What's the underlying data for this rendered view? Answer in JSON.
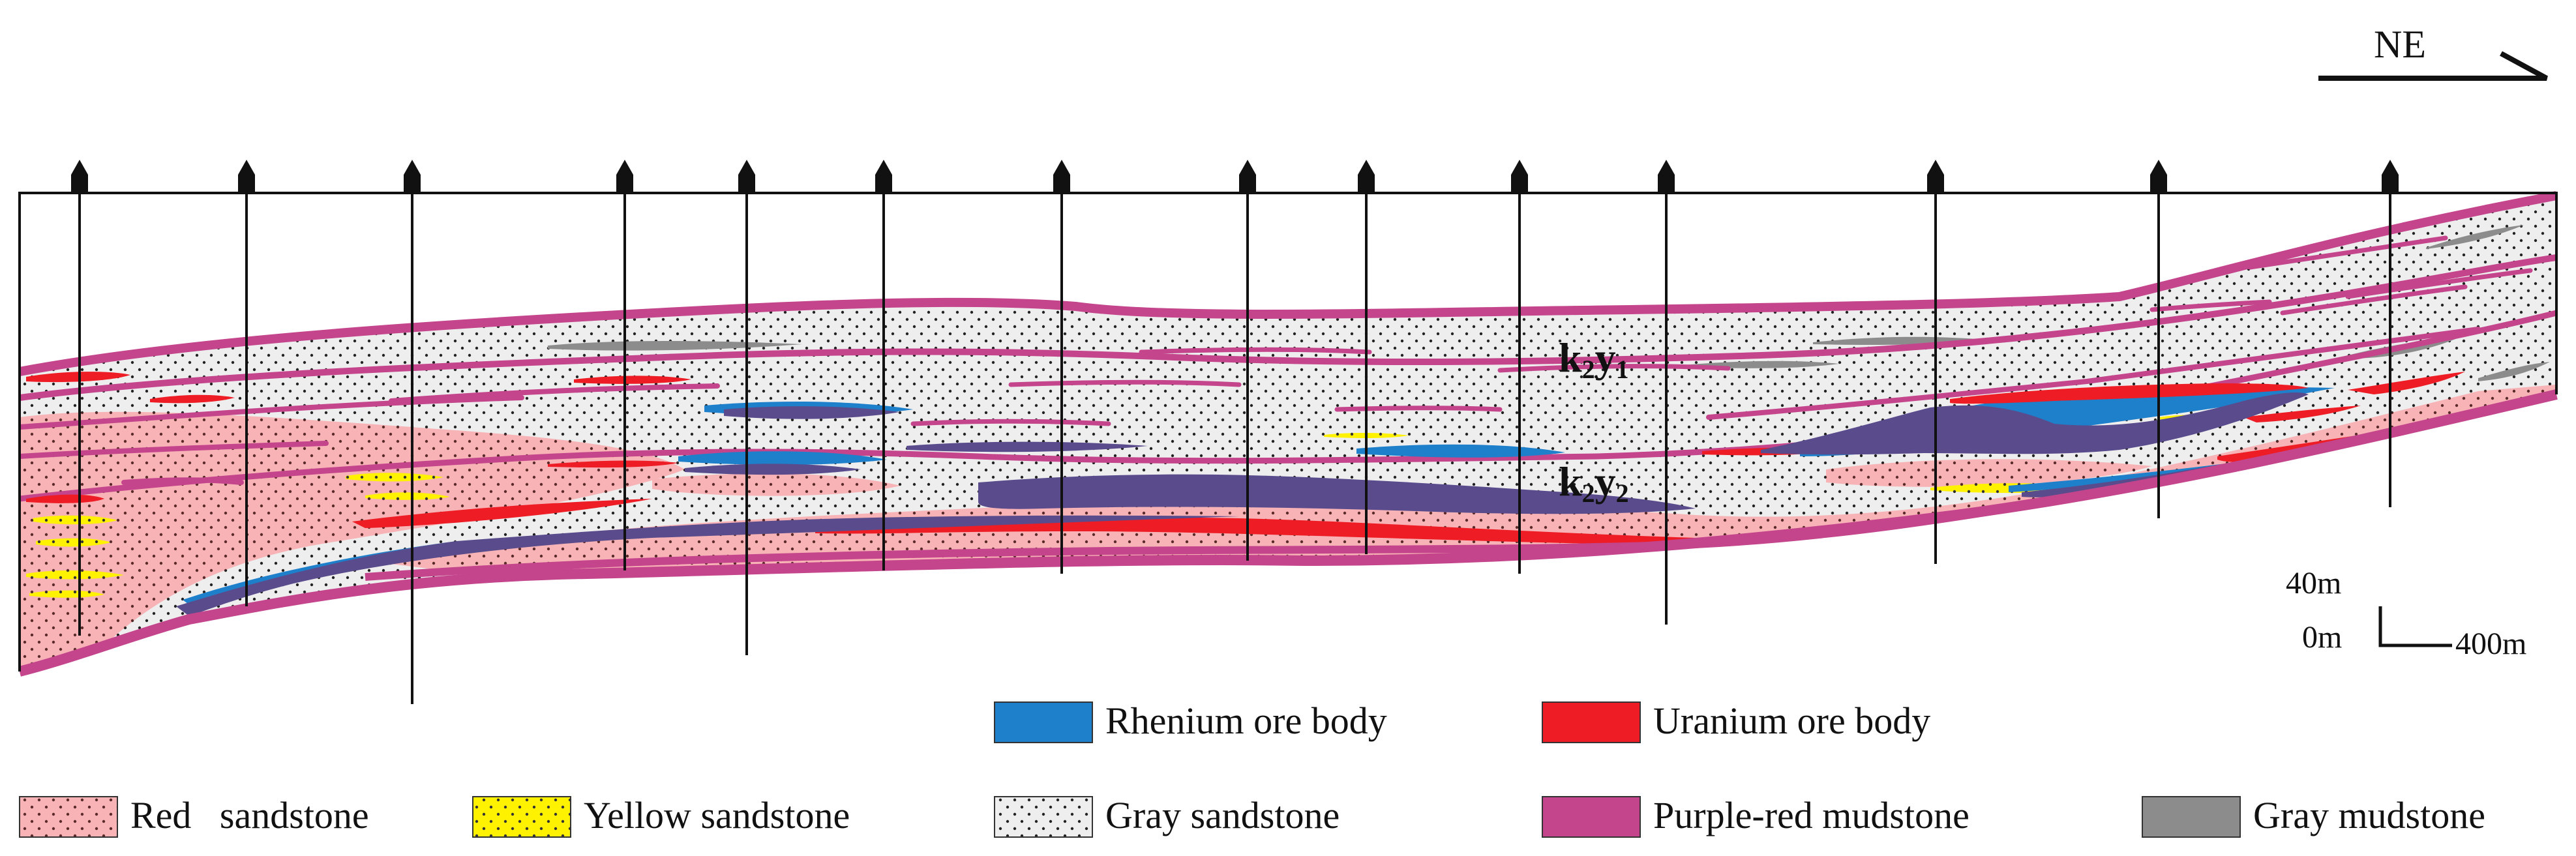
{
  "orientation": {
    "label": "NE"
  },
  "formations": {
    "upper": {
      "main": "k",
      "sub1": "2",
      "mid": "y",
      "sub2": "1"
    },
    "lower": {
      "main": "k",
      "sub1": "2",
      "mid": "y",
      "sub2": "2"
    }
  },
  "scale": {
    "vertical_label": "40m",
    "origin_label": "0m",
    "horizontal_label": "400m"
  },
  "legend": [
    {
      "key": "rhenium",
      "label": "Rhenium ore body",
      "color": "#1e7fcb",
      "pattern": "solid"
    },
    {
      "key": "uranium",
      "label": "Uranium ore body",
      "color": "#ee1c25",
      "pattern": "solid"
    },
    {
      "key": "red_sandstone",
      "label": "Red   sandstone",
      "color": "#f7b3b5",
      "pattern": "dots"
    },
    {
      "key": "yellow_sandstone",
      "label": "Yellow sandstone",
      "color": "#fff200",
      "pattern": "dots"
    },
    {
      "key": "gray_sandstone",
      "label": "Gray sandstone",
      "color": "#eeeeee",
      "pattern": "dots"
    },
    {
      "key": "purple_red_mudstone",
      "label": "Purple-red mudstone",
      "color": "#c4458c",
      "pattern": "solid"
    },
    {
      "key": "gray_mudstone",
      "label": "Gray mudstone",
      "color": "#8c8c8c",
      "pattern": "solid"
    }
  ],
  "colors": {
    "ore_overlap": "#5a4c8c",
    "outline": "#111111"
  },
  "boreholes": {
    "count": 14
  }
}
